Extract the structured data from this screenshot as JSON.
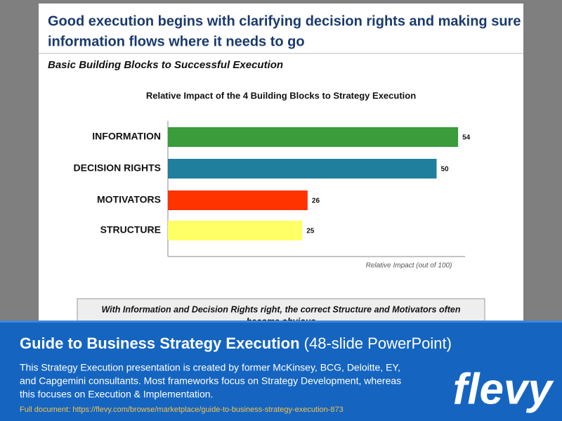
{
  "slide": {
    "title_lines": [
      "Good execution begins with clarifying decision rights and making sure",
      "information flows where it needs to go"
    ],
    "subtitle": "Basic Building Blocks to Successful Execution"
  },
  "chart_data": {
    "type": "bar",
    "orientation": "horizontal",
    "title": "Relative Impact of the 4 Building Blocks to Strategy Execution",
    "categories": [
      "INFORMATION",
      "DECISION RIGHTS",
      "MOTIVATORS",
      "STRUCTURE"
    ],
    "values": [
      54,
      50,
      26,
      25
    ],
    "colors": [
      "#3a9c3a",
      "#1f7f9c",
      "#ff3300",
      "#ffff66"
    ],
    "xlim": [
      0,
      60
    ],
    "xlabel": "Relative Impact (out of 100)",
    "grid": false
  },
  "callout_lines": [
    "With Information and Decision Rights right, the correct Structure and Motivators often",
    "become obvious"
  ],
  "banner": {
    "title": "Guide to Business Strategy Execution",
    "title_suffix": "(48-slide PowerPoint)",
    "body_lines": [
      "This Strategy Execution presentation is created by former McKinsey, BCG, Deloitte, EY,",
      "and Capgemini consultants. Most frameworks focus on Strategy Development, whereas",
      "this focuses on Execution & Implementation."
    ],
    "link": "Full document: https://flevy.com/browse/marketplace/guide-to-business-strategy-execution-873"
  },
  "logo": "flevy"
}
